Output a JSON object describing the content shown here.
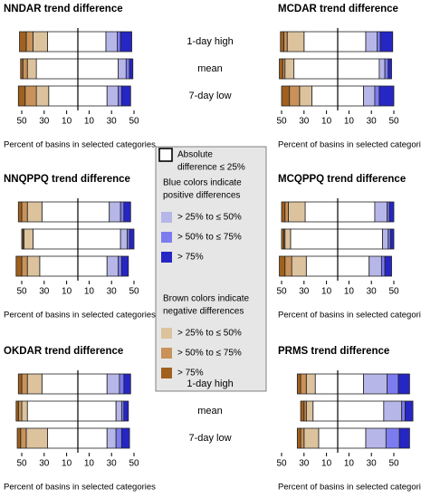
{
  "chart_data": [
    {
      "type": "bar",
      "title": "NNDAR trend difference",
      "categories": [
        "1-day high",
        "mean",
        "7-day low"
      ],
      "xlim": [
        -50,
        50
      ],
      "xticks": [
        {
          "value": -50,
          "label": "50"
        },
        {
          "value": -30,
          "label": "30"
        },
        {
          "value": -10,
          "label": "10"
        },
        10,
        30,
        50
      ],
      "xlabel": "Percent of basins in selected categories",
      "negative_series": [
        {
          "color": "#ffffff",
          "values": [
            27,
            37,
            26
          ]
        },
        {
          "color": "#dcc39d",
          "values": [
            13,
            8,
            11
          ]
        },
        {
          "color": "#c8925a",
          "values": [
            6,
            4,
            10
          ]
        },
        {
          "color": "#a0601e",
          "values": [
            6,
            2,
            6
          ]
        }
      ],
      "positive_series": [
        {
          "color": "#ffffff",
          "values": [
            25,
            36,
            26
          ]
        },
        {
          "color": "#b6b6e8",
          "values": [
            10,
            7,
            10
          ]
        },
        {
          "color": "#7c7cf0",
          "values": [
            3,
            3,
            3
          ]
        },
        {
          "color": "#2626c4",
          "values": [
            10,
            3,
            8
          ]
        }
      ]
    },
    {
      "type": "bar",
      "title": "MCDAR trend difference",
      "xlim": [
        -50,
        50
      ],
      "xticks": [
        {
          "value": -50,
          "label": "50"
        },
        {
          "value": -30,
          "label": "30"
        },
        {
          "value": -10,
          "label": "10"
        },
        10,
        30,
        50
      ],
      "xlabel": "Percent of basins in selected categories",
      "negative_series": [
        {
          "color": "#ffffff",
          "values": [
            30,
            39,
            23
          ]
        },
        {
          "color": "#dcc39d",
          "values": [
            15,
            8,
            11
          ]
        },
        {
          "color": "#c8925a",
          "values": [
            3,
            2,
            9
          ]
        },
        {
          "color": "#a0601e",
          "values": [
            3,
            3,
            7
          ]
        }
      ],
      "positive_series": [
        {
          "color": "#ffffff",
          "values": [
            25,
            37,
            23
          ]
        },
        {
          "color": "#b6b6e8",
          "values": [
            10,
            5,
            10
          ]
        },
        {
          "color": "#7c7cf0",
          "values": [
            3,
            3,
            4
          ]
        },
        {
          "color": "#2626c4",
          "values": [
            11,
            3,
            13
          ]
        }
      ]
    },
    {
      "type": "bar",
      "title": "NNQPPQ trend difference",
      "xlim": [
        -50,
        50
      ],
      "xticks": [
        {
          "value": -50,
          "label": "50"
        },
        {
          "value": -30,
          "label": "30"
        },
        {
          "value": -10,
          "label": "10"
        },
        10,
        30,
        50
      ],
      "xlabel": "Percent of basins in selected categories",
      "negative_series": [
        {
          "color": "#ffffff",
          "values": [
            32,
            40,
            34
          ]
        },
        {
          "color": "#dcc39d",
          "values": [
            13,
            8,
            11
          ]
        },
        {
          "color": "#c8925a",
          "values": [
            5,
            1,
            5
          ]
        },
        {
          "color": "#a0601e",
          "values": [
            3,
            1,
            5
          ]
        }
      ],
      "positive_series": [
        {
          "color": "#ffffff",
          "values": [
            28,
            38,
            26
          ]
        },
        {
          "color": "#b6b6e8",
          "values": [
            10,
            6,
            10
          ]
        },
        {
          "color": "#7c7cf0",
          "values": [
            3,
            2,
            3
          ]
        },
        {
          "color": "#2626c4",
          "values": [
            6,
            4,
            6
          ]
        }
      ]
    },
    {
      "type": "bar",
      "title": "MCQPPQ trend difference",
      "xlim": [
        -50,
        50
      ],
      "xticks": [
        {
          "value": -50,
          "label": "50"
        },
        {
          "value": -30,
          "label": "30"
        },
        {
          "value": -10,
          "label": "10"
        },
        10,
        30,
        50
      ],
      "xlabel": "Percent of basins in selected categories",
      "negative_series": [
        {
          "color": "#ffffff",
          "values": [
            29,
            42,
            28
          ]
        },
        {
          "color": "#dcc39d",
          "values": [
            15,
            5,
            13
          ]
        },
        {
          "color": "#c8925a",
          "values": [
            3,
            1,
            6
          ]
        },
        {
          "color": "#a0601e",
          "values": [
            3,
            2,
            5
          ]
        }
      ],
      "positive_series": [
        {
          "color": "#ffffff",
          "values": [
            33,
            40,
            28
          ]
        },
        {
          "color": "#b6b6e8",
          "values": [
            11,
            5,
            11
          ]
        },
        {
          "color": "#7c7cf0",
          "values": [
            2,
            2,
            3
          ]
        },
        {
          "color": "#2626c4",
          "values": [
            4,
            3,
            6
          ]
        }
      ]
    },
    {
      "type": "bar",
      "title": "OKDAR trend difference",
      "categories": [
        "1-day high",
        "mean",
        "7-day low"
      ],
      "xlim": [
        -50,
        50
      ],
      "xticks": [
        {
          "value": -50,
          "label": "50"
        },
        {
          "value": -30,
          "label": "30"
        },
        {
          "value": -10,
          "label": "10"
        },
        10,
        30,
        50
      ],
      "xlabel": "Percent of basins in selected categories",
      "negative_series": [
        {
          "color": "#ffffff",
          "values": [
            32,
            45,
            27
          ]
        },
        {
          "color": "#dcc39d",
          "values": [
            13,
            5,
            19
          ]
        },
        {
          "color": "#c8925a",
          "values": [
            5,
            3,
            5
          ]
        },
        {
          "color": "#a0601e",
          "values": [
            3,
            2,
            3
          ]
        }
      ],
      "positive_series": [
        {
          "color": "#ffffff",
          "values": [
            26,
            34,
            26
          ]
        },
        {
          "color": "#b6b6e8",
          "values": [
            11,
            5,
            8
          ]
        },
        {
          "color": "#7c7cf0",
          "values": [
            4,
            2,
            5
          ]
        },
        {
          "color": "#2626c4",
          "values": [
            6,
            4,
            7
          ]
        }
      ]
    },
    {
      "type": "bar",
      "title": "PRMS trend difference",
      "xlim": [
        -50,
        50
      ],
      "xticks": [
        {
          "value": -50,
          "label": "50"
        },
        {
          "value": -30,
          "label": "30"
        },
        {
          "value": -10,
          "label": "10"
        },
        10,
        30,
        50
      ],
      "xlabel": "Percent of basins in selected categories",
      "negative_series": [
        {
          "color": "#ffffff",
          "values": [
            20,
            22,
            17
          ]
        },
        {
          "color": "#dcc39d",
          "values": [
            8,
            6,
            13
          ]
        },
        {
          "color": "#c8925a",
          "values": [
            5,
            2,
            3
          ]
        },
        {
          "color": "#a0601e",
          "values": [
            3,
            3,
            3
          ]
        }
      ],
      "positive_series": [
        {
          "color": "#ffffff",
          "values": [
            23,
            41,
            25
          ]
        },
        {
          "color": "#b6b6e8",
          "values": [
            21,
            16,
            18
          ]
        },
        {
          "color": "#7c7cf0",
          "values": [
            10,
            3,
            12
          ]
        },
        {
          "color": "#2626c4",
          "values": [
            10,
            7,
            9
          ]
        }
      ]
    }
  ],
  "legend": {
    "absolute_label": [
      "Absolute",
      "difference ≤ 25%"
    ],
    "absolute_color": "#ffffff",
    "positive_heading": [
      "Blue colors indicate",
      "positive differences"
    ],
    "positive": [
      {
        "label": "> 25% to ≤ 50%",
        "color": "#b6b6e8"
      },
      {
        "label": "> 50% to ≤ 75%",
        "color": "#7c7cf0"
      },
      {
        "label": "> 75%",
        "color": "#2626c4"
      }
    ],
    "negative_heading": [
      "Brown colors indicate",
      "negative differences"
    ],
    "negative": [
      {
        "label": "> 25% to ≤ 50%",
        "color": "#dcc39d"
      },
      {
        "label": "> 50% to ≤ 75%",
        "color": "#c8925a"
      },
      {
        "label": "> 75%",
        "color": "#a0601e"
      }
    ]
  }
}
